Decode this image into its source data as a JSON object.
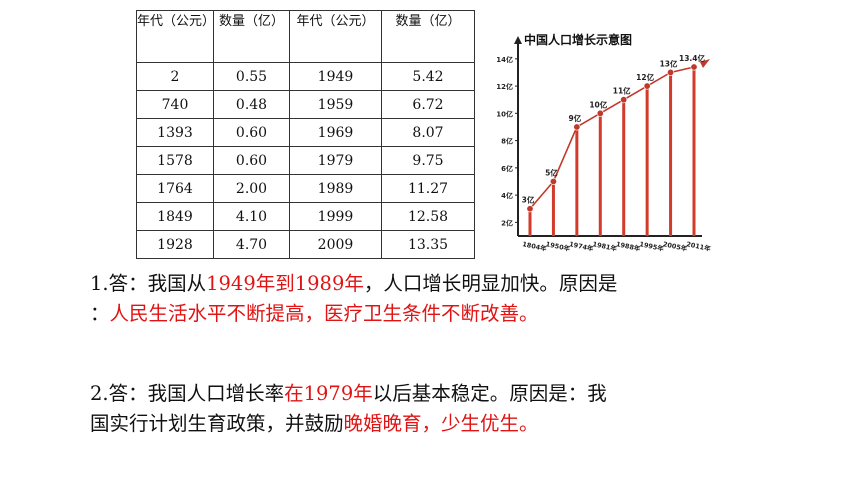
{
  "table": {
    "headers": [
      "年代（公元）",
      "数量（亿）",
      "年代（公元）",
      "数量（亿）"
    ],
    "rows": [
      [
        "2",
        "0.55",
        "1949",
        "5.42"
      ],
      [
        "740",
        "0.48",
        "1959",
        "6.72"
      ],
      [
        "1393",
        "0.60",
        "1969",
        "8.07"
      ],
      [
        "1578",
        "0.60",
        "1979",
        "9.75"
      ],
      [
        "1764",
        "2.00",
        "1989",
        "11.27"
      ],
      [
        "1849",
        "4.10",
        "1999",
        "12.58"
      ],
      [
        "1928",
        "4.70",
        "2009",
        "13.35"
      ]
    ]
  },
  "chart_data": {
    "type": "bar",
    "title": "中国人口增长示意图",
    "categories": [
      "1804年",
      "1950年",
      "1974年",
      "1981年",
      "1988年",
      "1995年",
      "2005年",
      "2011年"
    ],
    "values": [
      3,
      5,
      9,
      10,
      11,
      12,
      13,
      13.4
    ],
    "data_labels": [
      "3亿",
      "5亿",
      "9亿",
      "10亿",
      "11亿",
      "12亿",
      "13亿",
      "13.4亿"
    ],
    "yticks": [
      "2亿",
      "4亿",
      "6亿",
      "8亿",
      "10亿",
      "12亿",
      "14亿"
    ],
    "ylim": [
      1,
      14.5
    ],
    "colors": {
      "bar": "#d23b2a",
      "line": "#c0392b",
      "point": "#c0392b",
      "axis": "#222222"
    }
  },
  "answers": {
    "a1": {
      "p1": "1.答：我国从",
      "h1": "1949年到1989年",
      "p2": "，人口增长明显加快。原因是",
      "p3": "：",
      "h2": "人民生活水平不断提高，医疗卫生条件不断改善。"
    },
    "a2": {
      "p1": "2.答：我国人口增长率",
      "h1": "在1979年",
      "p2": "以后基本稳定。原因是：我",
      "p3": "国实行计划生育政策，并鼓励",
      "h2": "晚婚晚育，少生优生。"
    }
  }
}
